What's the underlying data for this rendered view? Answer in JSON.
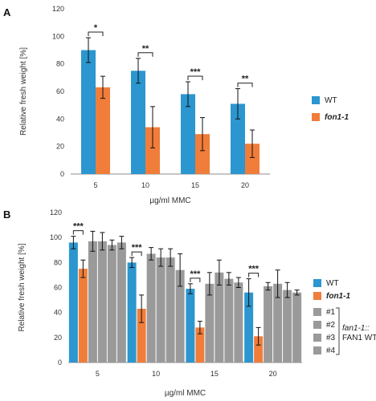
{
  "colors": {
    "wt": "#2b96cf",
    "fon": "#f07d3a",
    "comp": "#9a9a9a",
    "axis": "#8c8c8c",
    "err": "#111111"
  },
  "chart_data": [
    {
      "panel": "A",
      "type": "bar",
      "categories": [
        "5",
        "10",
        "15",
        "20"
      ],
      "xlabel": "µg/ml MMC",
      "ylabel": "Relative fresh weight [%]",
      "ylim": [
        0,
        120
      ],
      "yticks": [
        "0",
        "20",
        "40",
        "60",
        "80",
        "100",
        "120"
      ],
      "series": [
        {
          "name": "WT",
          "color_key": "wt",
          "values": [
            90,
            75,
            58,
            51
          ],
          "errors": [
            9,
            9,
            9,
            11
          ]
        },
        {
          "name": "fon1-1",
          "italic": true,
          "color_key": "fon",
          "values": [
            63,
            34,
            29,
            22
          ],
          "errors": [
            8,
            15,
            12,
            10
          ]
        }
      ],
      "significance": [
        "*",
        "**",
        "***",
        "**"
      ],
      "legend": "right"
    },
    {
      "panel": "B",
      "type": "bar",
      "categories": [
        "5",
        "10",
        "15",
        "20"
      ],
      "xlabel": "µg/ml MMC",
      "ylabel": "Relative fresh weight [%]",
      "ylim": [
        0,
        120
      ],
      "yticks": [
        "0",
        "20",
        "40",
        "60",
        "80",
        "100",
        "120"
      ],
      "series": [
        {
          "name": "WT",
          "color_key": "wt",
          "values": [
            96,
            80,
            59,
            56
          ],
          "errors": [
            5,
            4,
            4,
            11
          ]
        },
        {
          "name": "fon1-1",
          "italic": true,
          "color_key": "fon",
          "values": [
            75,
            43,
            28,
            21
          ],
          "errors": [
            7,
            11,
            5,
            7
          ]
        },
        {
          "name": "#1",
          "color_key": "comp",
          "values": [
            97,
            87,
            63,
            61
          ],
          "errors": [
            8,
            5,
            9,
            3
          ]
        },
        {
          "name": "#2",
          "color_key": "comp",
          "values": [
            97,
            84,
            72,
            63
          ],
          "errors": [
            7,
            7,
            10,
            11
          ]
        },
        {
          "name": "#3",
          "color_key": "comp",
          "values": [
            94,
            84,
            67,
            58
          ],
          "errors": [
            4,
            7,
            5,
            6
          ]
        },
        {
          "name": "#4",
          "color_key": "comp",
          "values": [
            96,
            74,
            64,
            56
          ],
          "errors": [
            5,
            13,
            4,
            2
          ]
        }
      ],
      "significance": [
        "***",
        "***",
        "***",
        "***"
      ],
      "legend": "right",
      "bracket_label_line1": "fan1-1::",
      "bracket_label_line2": "FAN1 WT"
    }
  ]
}
